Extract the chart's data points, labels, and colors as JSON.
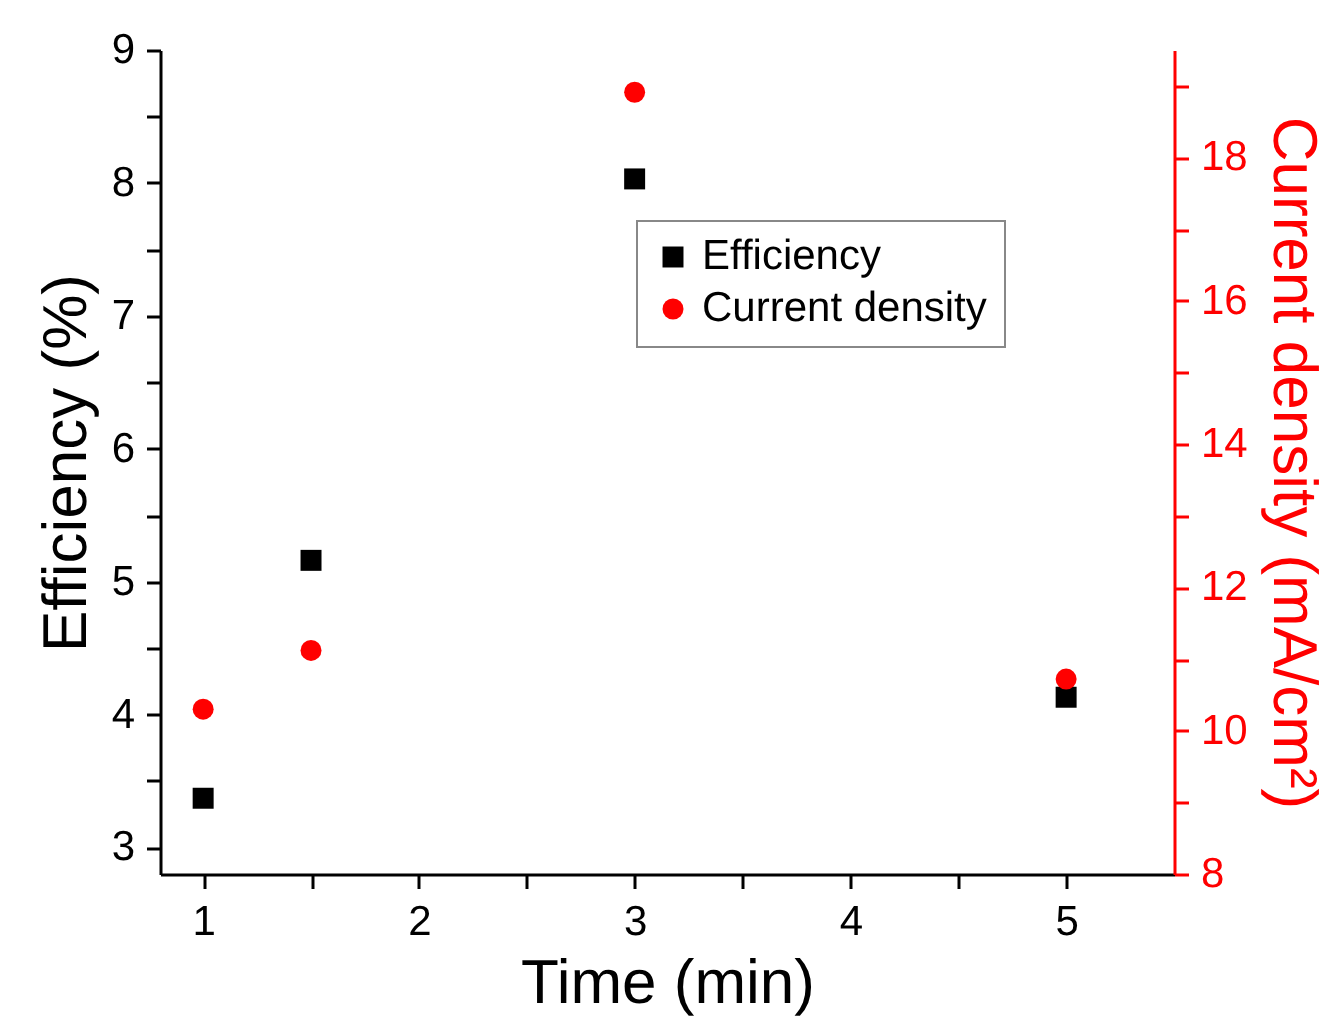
{
  "chart_data": {
    "type": "scatter",
    "xlabel": "Time (min)",
    "ylabel": "Efficiency (%)",
    "y2label": "Current density (mA/cm²)",
    "xlim": [
      0.8,
      5.5
    ],
    "xticks": [
      1,
      {
        "value": 1.5,
        "label": null
      },
      2,
      {
        "value": 2.5,
        "label": null
      },
      3,
      {
        "value": 3.5,
        "label": null
      },
      4,
      {
        "value": 4.5,
        "label": null
      },
      5
    ],
    "ylim": [
      2.8,
      9
    ],
    "yticks": [
      3,
      {
        "value": 3.5,
        "label": null
      },
      4,
      {
        "value": 4.5,
        "label": null
      },
      5,
      {
        "value": 5.5,
        "label": null
      },
      6,
      {
        "value": 6.5,
        "label": null
      },
      7,
      {
        "value": 7.5,
        "label": null
      },
      8,
      {
        "value": 8.5,
        "label": null
      },
      9
    ],
    "y2lim": [
      8,
      19.5
    ],
    "y2ticks": [
      8,
      {
        "value": 9,
        "label": null
      },
      10,
      {
        "value": 11,
        "label": null
      },
      12,
      {
        "value": 13,
        "label": null
      },
      14,
      {
        "value": 15,
        "label": null
      },
      16,
      {
        "value": 17,
        "label": null
      },
      18,
      {
        "value": 19,
        "label": null
      }
    ],
    "legend": "top right",
    "grid": false,
    "series": [
      {
        "name": "Efficiency",
        "color": "#000000",
        "marker": "square",
        "x": [
          1,
          1.5,
          3,
          5
        ],
        "values": [
          3.37,
          5.16,
          8.03,
          4.13
        ]
      },
      {
        "name": "Current density",
        "color": "#ff0000",
        "marker": "circle",
        "axis": "y2",
        "x": [
          1,
          1.5,
          3,
          5
        ],
        "values": [
          10.3,
          11.12,
          18.91,
          10.72
        ]
      }
    ]
  }
}
